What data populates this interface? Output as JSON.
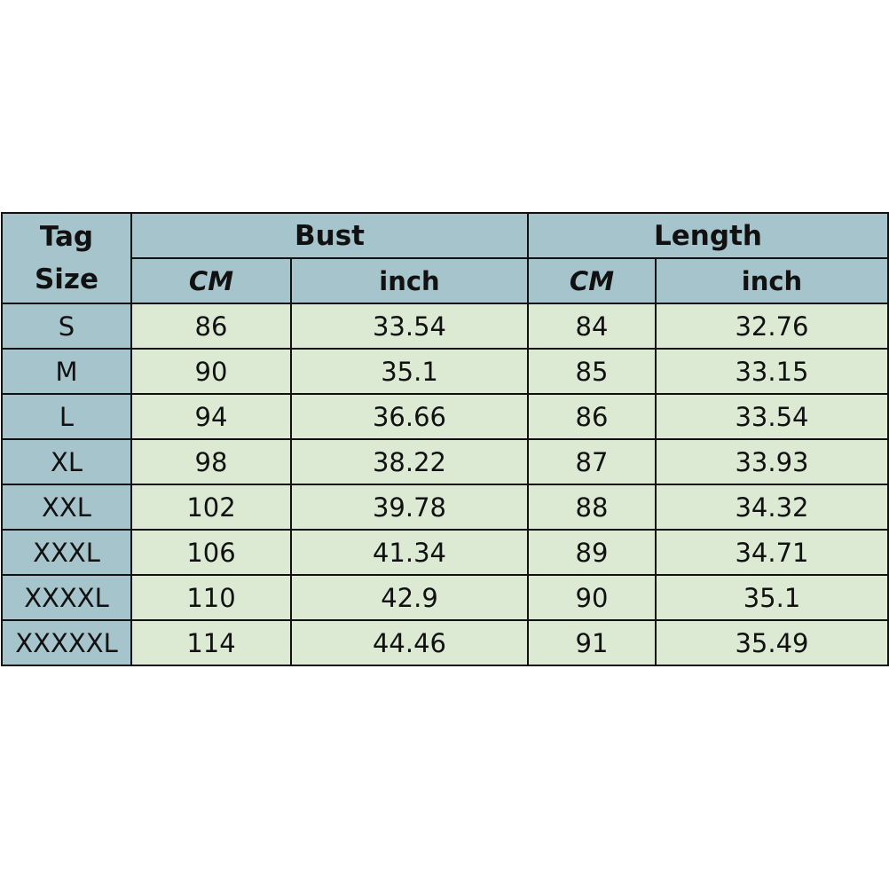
{
  "header": {
    "tag_size": [
      "Tag",
      "Size"
    ],
    "bust": "Bust",
    "length": "Length",
    "units": [
      "CM",
      "inch",
      "CM",
      "inch"
    ]
  },
  "colors": {
    "header": "#a6c4cb",
    "cells": "#dcead4",
    "border": "#111111"
  },
  "rows": [
    [
      "S",
      "86",
      "33.54",
      "84",
      "32.76"
    ],
    [
      "M",
      "90",
      "35.1",
      "85",
      "33.15"
    ],
    [
      "L",
      "94",
      "36.66",
      "86",
      "33.54"
    ],
    [
      "XL",
      "98",
      "38.22",
      "87",
      "33.93"
    ],
    [
      "XXL",
      "102",
      "39.78",
      "88",
      "34.32"
    ],
    [
      "XXXL",
      "106",
      "41.34",
      "89",
      "34.71"
    ],
    [
      "XXXXL",
      "110",
      "42.9",
      "90",
      "35.1"
    ],
    [
      "XXXXXL",
      "114",
      "44.46",
      "91",
      "35.49"
    ]
  ]
}
